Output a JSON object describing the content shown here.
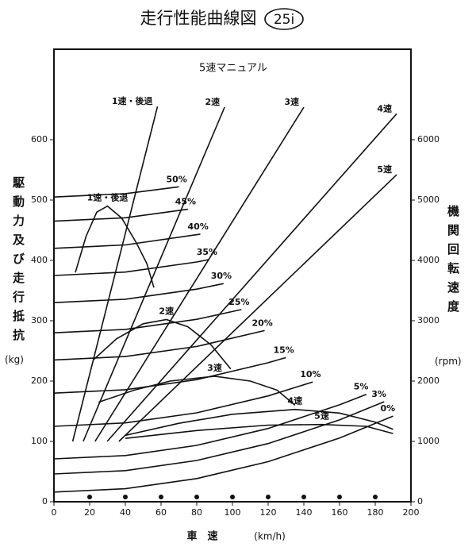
{
  "chart_data": {
    "type": "line",
    "title": "走行性能曲線図",
    "title_badge": "25i",
    "subtitle": "5速マニュアル",
    "x_label": "車　速",
    "x_unit": "(km/h)",
    "y_label": "駆動力及び走行抵抗",
    "y_unit": "(kg)",
    "y2_label": "機関回転速度",
    "y2_unit": "(rpm)",
    "xlim": [
      0,
      200
    ],
    "xticks": [
      0,
      20,
      40,
      60,
      80,
      100,
      120,
      140,
      160,
      180,
      200
    ],
    "ylim": [
      0,
      750
    ],
    "yticks": [
      0,
      100,
      200,
      300,
      400,
      500,
      600
    ],
    "y2lim": [
      0,
      7500
    ],
    "y2ticks": [
      0,
      1000,
      2000,
      3000,
      4000,
      5000,
      6000
    ],
    "series": [
      {
        "name": "0%",
        "color": "#111",
        "x": [
          0,
          40,
          80,
          120,
          160,
          190
        ],
        "values": [
          16,
          21.6,
          38.4,
          66.4,
          105.6,
          142
        ]
      },
      {
        "name": "3%",
        "color": "#111",
        "x": [
          0,
          40,
          80,
          120,
          160,
          185
        ],
        "values": [
          46,
          51.6,
          68.4,
          96.4,
          135.6,
          165.8
        ]
      },
      {
        "name": "5%",
        "color": "#111",
        "x": [
          0,
          40,
          80,
          120,
          160,
          175
        ],
        "values": [
          71,
          76.6,
          93.4,
          121.4,
          160.6,
          178
        ]
      },
      {
        "name": "10%",
        "color": "#111",
        "x": [
          0,
          40,
          80,
          120,
          145
        ],
        "values": [
          125,
          130.6,
          147.4,
          175.4,
          198.6
        ]
      },
      {
        "name": "15%",
        "color": "#111",
        "x": [
          0,
          40,
          80,
          120,
          130
        ],
        "values": [
          180,
          185.6,
          202.4,
          230.4,
          239
        ]
      },
      {
        "name": "20%",
        "color": "#111",
        "x": [
          0,
          40,
          80,
          118
        ],
        "values": [
          235,
          240.6,
          257.4,
          283.7
        ]
      },
      {
        "name": "25%",
        "color": "#111",
        "x": [
          0,
          40,
          80,
          105
        ],
        "values": [
          280,
          285.6,
          302.4,
          318.6
        ]
      },
      {
        "name": "30%",
        "color": "#111",
        "x": [
          0,
          40,
          80,
          95
        ],
        "values": [
          330,
          335.6,
          352.4,
          361.6
        ]
      },
      {
        "name": "35%",
        "color": "#111",
        "x": [
          0,
          40,
          80,
          87
        ],
        "values": [
          375,
          380.6,
          397.4,
          401.5
        ]
      },
      {
        "name": "40%",
        "color": "#111",
        "x": [
          0,
          40,
          82
        ],
        "values": [
          420,
          425.6,
          443.5
        ]
      },
      {
        "name": "45%",
        "color": "#111",
        "x": [
          0,
          40,
          75
        ],
        "values": [
          465,
          470.6,
          484.7
        ]
      },
      {
        "name": "50%",
        "color": "#111",
        "x": [
          0,
          40,
          70
        ],
        "values": [
          505,
          510.6,
          522
        ]
      },
      {
        "name": "1速・後退",
        "color": "#111",
        "x": [
          12,
          18,
          24,
          30,
          38,
          46,
          52,
          56
        ],
        "values": [
          380,
          440,
          480,
          490,
          470,
          430,
          395,
          355
        ]
      },
      {
        "name": "2速",
        "color": "#111",
        "x": [
          22,
          35,
          50,
          63,
          75,
          88,
          99
        ],
        "values": [
          235,
          270,
          295,
          302,
          290,
          260,
          220
        ]
      },
      {
        "name": "3速",
        "color": "#111",
        "x": [
          25,
          45,
          65,
          90,
          110,
          125,
          135
        ],
        "values": [
          165,
          185,
          200,
          208,
          200,
          185,
          160
        ]
      },
      {
        "name": "4速",
        "color": "#111",
        "x": [
          40,
          70,
          100,
          135,
          160,
          180,
          190
        ],
        "values": [
          110,
          130,
          145,
          153,
          147,
          132,
          120
        ]
      },
      {
        "name": "5速",
        "color": "#111",
        "x": [
          40,
          80,
          120,
          150,
          175,
          190
        ],
        "values": [
          105,
          118,
          127,
          128,
          125,
          113
        ]
      },
      {
        "name": "1速・後退",
        "color": "#111",
        "axis": "y2",
        "x": [
          10.5,
          58
        ],
        "values": [
          1000,
          6550
        ]
      },
      {
        "name": "2速",
        "color": "#111",
        "axis": "y2",
        "x": [
          16.4,
          95.6
        ],
        "values": [
          1000,
          6540
        ]
      },
      {
        "name": "3速",
        "color": "#111",
        "axis": "y2",
        "x": [
          23,
          140
        ],
        "values": [
          1000,
          6540
        ]
      },
      {
        "name": "4速",
        "color": "#111",
        "axis": "y2",
        "x": [
          29.8,
          192
        ],
        "values": [
          1000,
          6430
        ]
      },
      {
        "name": "5速",
        "color": "#111",
        "axis": "y2",
        "x": [
          36.4,
          192
        ],
        "values": [
          1000,
          5420
        ]
      }
    ]
  }
}
